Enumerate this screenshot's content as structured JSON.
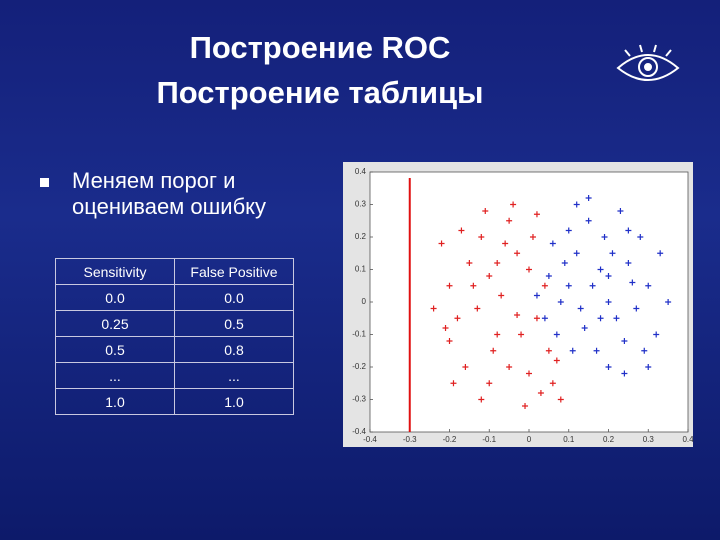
{
  "slide": {
    "title": [
      "Построение ROC",
      "Построение таблицы"
    ],
    "bullet": "Меняем порог и оцениваем ошибку",
    "table": {
      "header": [
        "Sensitivity",
        "False Positive"
      ],
      "rows": [
        [
          "0.0",
          "0.0"
        ],
        [
          "0.25",
          "0.5"
        ],
        [
          "0.5",
          "0.8"
        ],
        [
          "...",
          "..."
        ],
        [
          "1.0",
          "1.0"
        ]
      ]
    }
  },
  "chart_data": {
    "type": "scatter",
    "xlim": [
      -0.4,
      0.4
    ],
    "ylim": [
      -0.4,
      0.4
    ],
    "xticks": [
      -0.4,
      -0.3,
      -0.2,
      -0.1,
      0,
      0.1,
      0.2,
      0.3,
      0.4
    ],
    "yticks": [
      -0.4,
      -0.3,
      -0.2,
      -0.1,
      0,
      0.1,
      0.2,
      0.3,
      0.4
    ],
    "vline": -0.3,
    "vline_color": "#e01010",
    "series": [
      {
        "color": "#e02020",
        "x": [
          -0.2,
          -0.18,
          -0.15,
          -0.12,
          -0.1,
          -0.08,
          -0.05,
          -0.03,
          0,
          0.02,
          -0.2,
          -0.16,
          -0.1,
          -0.05,
          0,
          0.03,
          0.05,
          -0.22,
          -0.13,
          -0.07,
          -0.02,
          0.01,
          -0.11,
          -0.04,
          0.06,
          -0.19,
          -0.24,
          -0.09,
          -0.14,
          0.04,
          -0.06,
          0.08,
          -0.01,
          -0.17,
          -0.08,
          0.02,
          -0.12,
          0.07,
          -0.21,
          -0.03
        ],
        "values": [
          0.05,
          -0.05,
          0.12,
          0.2,
          0.08,
          -0.1,
          0.25,
          0.15,
          0.1,
          -0.05,
          -0.12,
          -0.2,
          -0.25,
          -0.2,
          -0.22,
          -0.28,
          -0.15,
          0.18,
          -0.02,
          0.02,
          -0.1,
          0.2,
          0.28,
          0.3,
          -0.25,
          -0.25,
          -0.02,
          -0.15,
          0.05,
          0.05,
          0.18,
          -0.3,
          -0.32,
          0.22,
          0.12,
          0.27,
          -0.3,
          -0.18,
          -0.08,
          -0.04
        ]
      },
      {
        "color": "#2030c8",
        "x": [
          0.1,
          0.12,
          0.15,
          0.18,
          0.2,
          0.22,
          0.25,
          0.28,
          0.3,
          0.08,
          0.05,
          0.14,
          0.17,
          0.2,
          0.24,
          0.27,
          0.32,
          0.1,
          0.06,
          0.13,
          0.19,
          0.23,
          0.11,
          0.16,
          0.26,
          0.29,
          0.33,
          0.09,
          0.21,
          0.18,
          0.04,
          0.15,
          0.35,
          0.12,
          0.24,
          0.07,
          0.2,
          0.3,
          0.02,
          0.25
        ],
        "values": [
          0.05,
          0.15,
          0.25,
          0.1,
          0,
          -0.05,
          0.12,
          0.2,
          0.05,
          0,
          0.08,
          -0.08,
          -0.15,
          -0.2,
          -0.12,
          -0.02,
          -0.1,
          0.22,
          0.18,
          -0.02,
          0.2,
          0.28,
          -0.15,
          0.05,
          0.06,
          -0.15,
          0.15,
          0.12,
          0.15,
          -0.05,
          -0.05,
          0.32,
          0,
          0.3,
          -0.22,
          -0.1,
          0.08,
          -0.2,
          0.02,
          0.22
        ]
      }
    ]
  }
}
